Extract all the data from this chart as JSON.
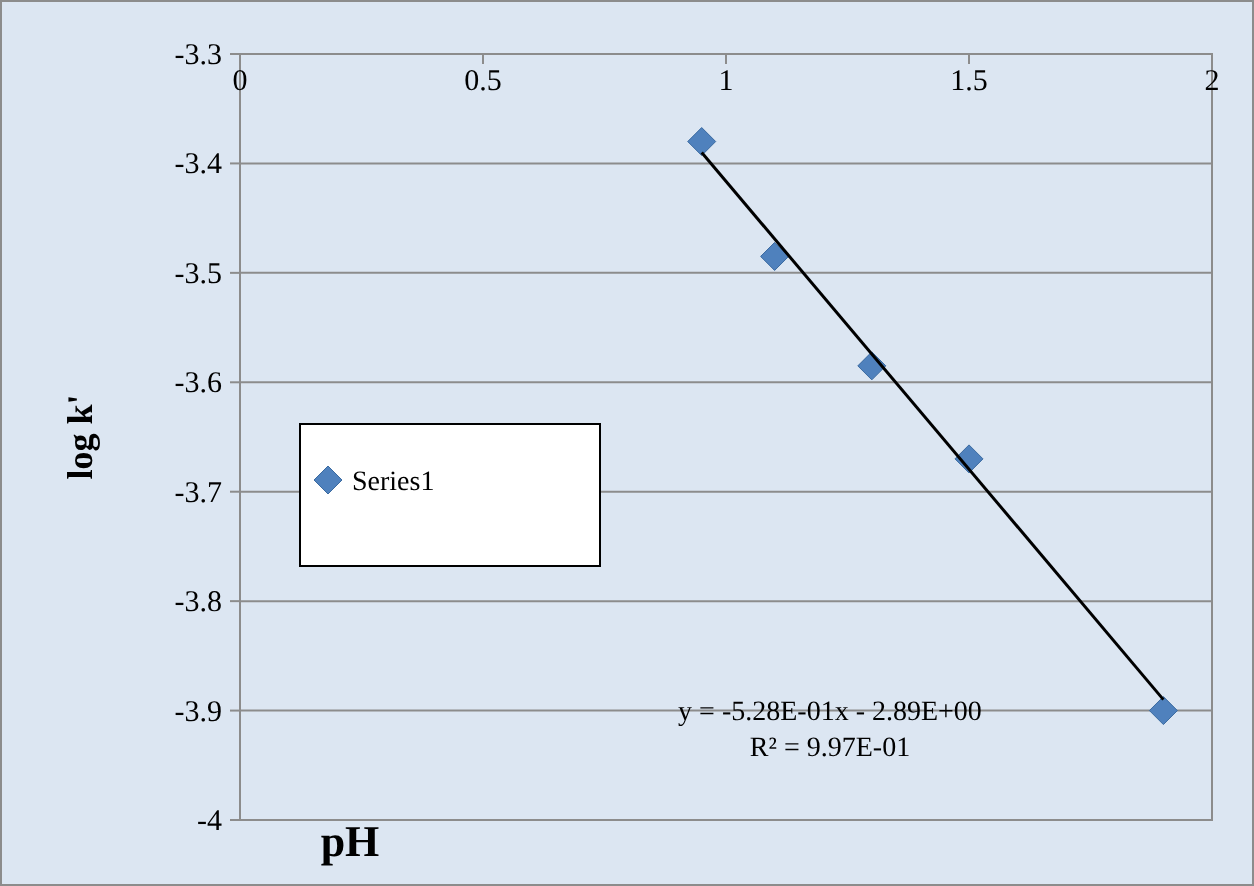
{
  "chart_data": {
    "type": "scatter",
    "xlabel": "pH",
    "ylabel": "log k'",
    "xlim": [
      0,
      2
    ],
    "xticks": [
      0,
      0.5,
      1,
      1.5,
      2
    ],
    "ylim": [
      -4,
      -3.3
    ],
    "yticks": [
      -4,
      -3.9,
      -3.8,
      -3.7,
      -3.6,
      -3.5,
      -3.4,
      -3.3
    ],
    "grid": "y",
    "legend": "left",
    "marker": "diamond",
    "series": [
      {
        "name": "Series1",
        "color": "#4f81bd",
        "x": [
          0.95,
          1.1,
          1.3,
          1.5,
          1.9
        ],
        "values": [
          -3.38,
          -3.485,
          -3.585,
          -3.67,
          -3.9
        ]
      },
      {
        "type": "line",
        "color": "#000000",
        "marker": "none",
        "x": [
          0.95,
          1.9
        ],
        "values": [
          -3.39,
          -3.89
        ]
      }
    ],
    "annotations": [
      "y = -5.28E-01x - 2.89E+00",
      "R² = 9.97E-01"
    ]
  }
}
